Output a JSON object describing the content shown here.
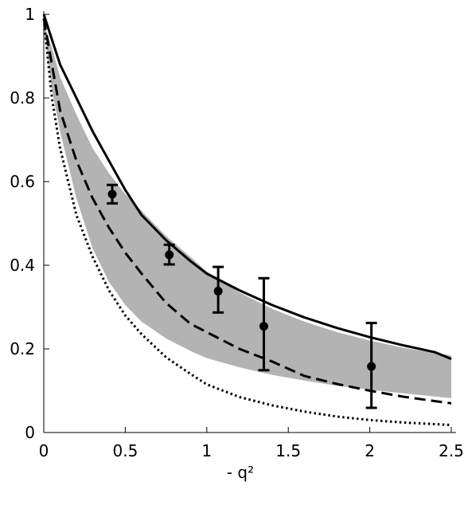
{
  "chart_data": {
    "type": "line",
    "title": "",
    "xlabel": "- q²",
    "ylabel": "",
    "xlim": [
      0,
      2.5
    ],
    "ylim": [
      0,
      1
    ],
    "x_ticks": [
      {
        "value": 0,
        "label": "0"
      },
      {
        "value": 0.5,
        "label": "0.5"
      },
      {
        "value": 1,
        "label": "1"
      },
      {
        "value": 1.5,
        "label": "1.5"
      },
      {
        "value": 2,
        "label": "2"
      },
      {
        "value": 2.5,
        "label": "2.5"
      }
    ],
    "y_ticks": [
      {
        "value": 0,
        "label": "0"
      },
      {
        "value": 0.2,
        "label": "0.2"
      },
      {
        "value": 0.4,
        "label": "0.4"
      },
      {
        "value": 0.6,
        "label": "0.6"
      },
      {
        "value": 0.8,
        "label": "0.8"
      },
      {
        "value": 1,
        "label": "1"
      }
    ],
    "grid": false,
    "band": {
      "color": "#b3b3b3",
      "x": [
        0,
        0.05,
        0.1,
        0.2,
        0.3,
        0.4,
        0.5,
        0.6,
        0.75,
        0.9,
        1.0,
        1.2,
        1.4,
        1.6,
        1.8,
        2.0,
        2.2,
        2.4,
        2.5
      ],
      "upper": [
        0.98,
        0.92,
        0.85,
        0.76,
        0.68,
        0.62,
        0.57,
        0.53,
        0.47,
        0.42,
        0.385,
        0.335,
        0.296,
        0.265,
        0.24,
        0.22,
        0.203,
        0.19,
        0.184
      ],
      "lower": [
        0.97,
        0.82,
        0.72,
        0.56,
        0.44,
        0.36,
        0.305,
        0.265,
        0.225,
        0.195,
        0.178,
        0.156,
        0.138,
        0.124,
        0.112,
        0.102,
        0.094,
        0.086,
        0.082
      ]
    },
    "series": [
      {
        "style": "solid",
        "color": "#000000",
        "x": [
          0,
          0.05,
          0.1,
          0.2,
          0.3,
          0.4,
          0.5,
          0.6,
          0.75,
          0.9,
          1.0,
          1.2,
          1.4,
          1.6,
          1.8,
          2.0,
          2.2,
          2.4,
          2.5
        ],
        "y": [
          1.0,
          0.94,
          0.88,
          0.8,
          0.72,
          0.65,
          0.58,
          0.52,
          0.46,
          0.41,
          0.38,
          0.34,
          0.305,
          0.275,
          0.25,
          0.228,
          0.209,
          0.192,
          0.176
        ]
      },
      {
        "style": "dashed",
        "color": "#000000",
        "x": [
          0,
          0.05,
          0.1,
          0.2,
          0.3,
          0.4,
          0.5,
          0.6,
          0.75,
          0.9,
          1.0,
          1.2,
          1.4,
          1.6,
          1.8,
          2.0,
          2.2,
          2.4,
          2.5
        ],
        "y": [
          0.99,
          0.88,
          0.77,
          0.65,
          0.56,
          0.49,
          0.43,
          0.38,
          0.31,
          0.26,
          0.24,
          0.2,
          0.17,
          0.135,
          0.116,
          0.1,
          0.086,
          0.075,
          0.07
        ]
      },
      {
        "style": "dotted",
        "color": "#000000",
        "x": [
          0,
          0.05,
          0.1,
          0.15,
          0.2,
          0.3,
          0.4,
          0.5,
          0.6,
          0.75,
          0.9,
          1.0,
          1.2,
          1.4,
          1.6,
          1.8,
          2.0,
          2.2,
          2.4,
          2.5
        ],
        "y": [
          0.99,
          0.8,
          0.68,
          0.6,
          0.52,
          0.42,
          0.34,
          0.28,
          0.235,
          0.18,
          0.14,
          0.115,
          0.085,
          0.065,
          0.05,
          0.038,
          0.03,
          0.024,
          0.02,
          0.018
        ]
      }
    ],
    "points": [
      {
        "x": 0.42,
        "y": 0.57,
        "err_low": 0.548,
        "err_high": 0.592
      },
      {
        "x": 0.77,
        "y": 0.425,
        "err_low": 0.402,
        "err_high": 0.449
      },
      {
        "x": 1.07,
        "y": 0.338,
        "err_low": 0.287,
        "err_high": 0.396
      },
      {
        "x": 1.35,
        "y": 0.254,
        "err_low": 0.149,
        "err_high": 0.369
      },
      {
        "x": 2.01,
        "y": 0.158,
        "err_low": 0.059,
        "err_high": 0.262
      }
    ]
  }
}
